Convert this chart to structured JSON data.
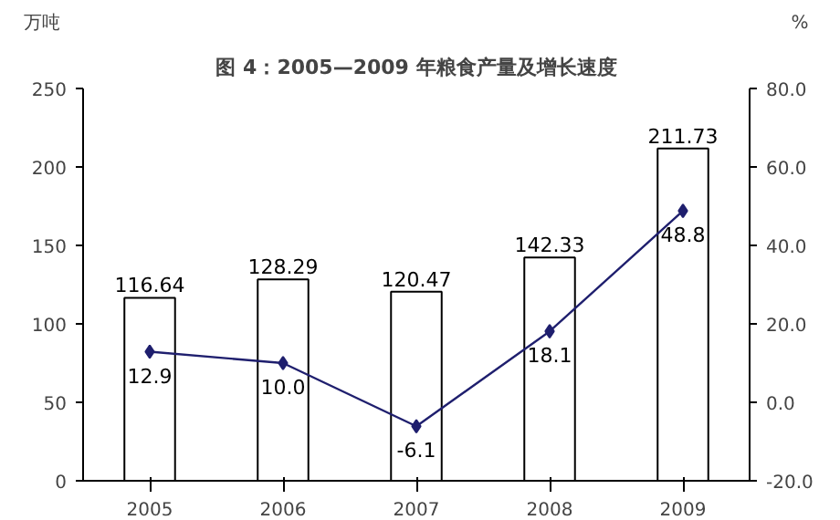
{
  "chart_data": {
    "type": "bar",
    "title": "图 4：2005—2009 年粮食产量及增长速度",
    "ylabel": "万吨",
    "y2label": "%",
    "categories": [
      "2005",
      "2006",
      "2007",
      "2008",
      "2009"
    ],
    "series": [
      {
        "color": "#ffffff",
        "values": [
          116.64,
          128.29,
          120.47,
          142.33,
          211.73
        ],
        "value_labels": [
          "116.64",
          "128.29",
          "120.47",
          "142.33",
          "211.73"
        ]
      },
      {
        "type": "line",
        "axis": "y2",
        "color": "#1f1f6e",
        "marker": "diamond",
        "values": [
          12.9,
          10.0,
          -6.1,
          18.1,
          48.8
        ],
        "value_labels": [
          "12.9",
          "10.0",
          "-6.1",
          "18.1",
          "48.8"
        ]
      }
    ],
    "ylim": [
      0,
      250
    ],
    "yticks": [
      0,
      50,
      100,
      150,
      200,
      250
    ],
    "y2lim": [
      -20,
      80
    ],
    "y2ticks": [
      {
        "value": -20,
        "label": "-20.0"
      },
      {
        "value": 0,
        "label": "0.0"
      },
      {
        "value": 20,
        "label": "20.0"
      },
      {
        "value": 40,
        "label": "40.0"
      },
      {
        "value": 60,
        "label": "60.0"
      },
      {
        "value": 80,
        "label": "80.0"
      }
    ],
    "grid": false
  }
}
